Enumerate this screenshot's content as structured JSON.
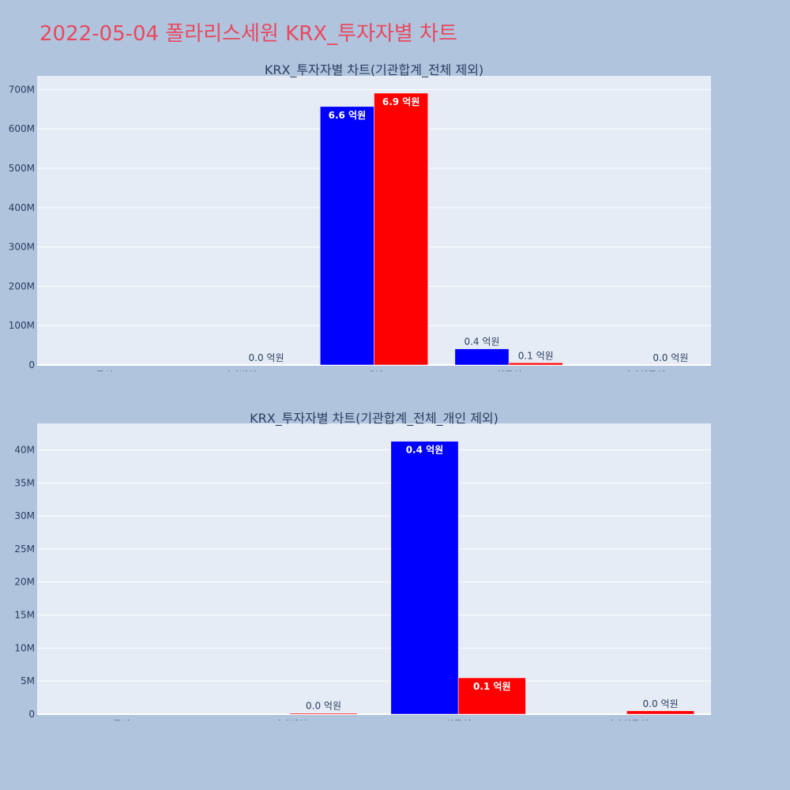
{
  "page_title": "2022-05-04 폴라리스세원 KRX_투자자별 차트",
  "colors": {
    "background": "#b0c4de",
    "plot_bg": "#e5ecf6",
    "title": "#e8495f",
    "buy": "#0000ff",
    "sell": "#ff0000",
    "text": "#2a3f5f"
  },
  "chart_data": [
    {
      "type": "bar",
      "title": "KRX_투자자별 차트(기관합계_전체 제외)",
      "categories": [
        "투신",
        "기타법인",
        "개인",
        "외국인",
        "기타외국인"
      ],
      "ylim": [
        0,
        735000000
      ],
      "yticks": [
        0,
        100000000,
        200000000,
        300000000,
        400000000,
        500000000,
        600000000,
        700000000
      ],
      "ytick_labels": [
        "0",
        "100M",
        "200M",
        "300M",
        "400M",
        "500M",
        "600M",
        "700M"
      ],
      "grid": true,
      "series": [
        {
          "color": "#0000ff",
          "values": [
            0,
            0,
            657000000,
            41000000,
            0
          ],
          "labels": [
            "",
            "",
            "6.6 억원",
            "0.4 억원",
            ""
          ]
        },
        {
          "color": "#ff0000",
          "values": [
            0,
            0,
            691000000,
            5500000,
            400000
          ],
          "labels": [
            "",
            "0.0 억원",
            "6.9 억원",
            "0.1 억원",
            "0.0 억원"
          ]
        }
      ]
    },
    {
      "type": "bar",
      "title": "KRX_투자자별 차트(기관합계_전체_개인 제외)",
      "categories": [
        "투신",
        "기타법인",
        "외국인",
        "기타외국인"
      ],
      "ylim": [
        0,
        44000000
      ],
      "yticks": [
        0,
        5000000,
        10000000,
        15000000,
        20000000,
        25000000,
        30000000,
        35000000,
        40000000
      ],
      "ytick_labels": [
        "0",
        "5M",
        "10M",
        "15M",
        "20M",
        "25M",
        "30M",
        "35M",
        "40M"
      ],
      "grid": true,
      "series": [
        {
          "color": "#0000ff",
          "values": [
            0,
            0,
            41300000,
            0
          ],
          "labels": [
            "",
            "",
            "0.4 억원",
            ""
          ]
        },
        {
          "color": "#ff0000",
          "values": [
            0,
            150000,
            5500000,
            500000
          ],
          "labels": [
            "",
            "0.0 억원",
            "0.1 억원",
            "0.0 억원"
          ]
        }
      ]
    }
  ]
}
